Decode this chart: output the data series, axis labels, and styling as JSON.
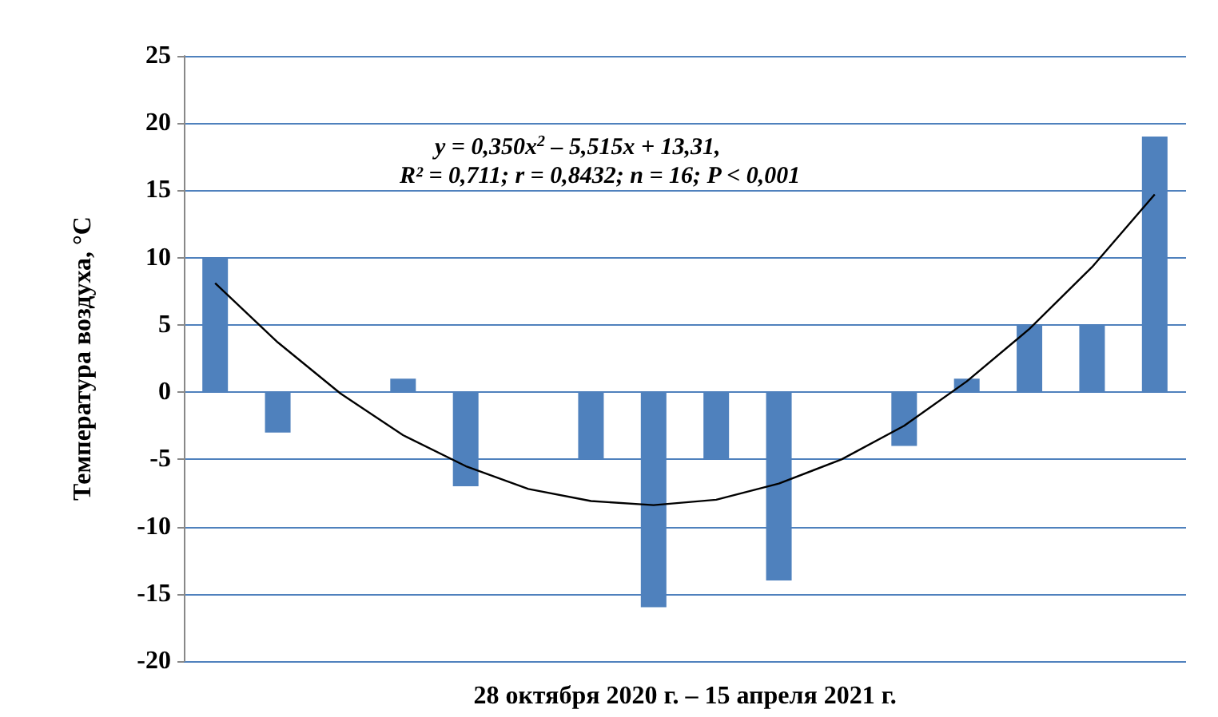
{
  "chart_data": {
    "type": "bar",
    "ylabel": "Температура воздуха, °C",
    "xlabel": "28 октября 2020 г. – 15 апреля 2021 г.",
    "annotations": [
      "y = 0,350x$^{2}$ – 5,515x + 13,31,",
      "R² = 0,711; r = 0,8432; n = 16; P < 0,001"
    ],
    "categories": [
      null,
      null,
      null,
      null,
      null,
      null,
      null,
      null,
      null,
      null,
      null,
      null,
      null,
      null,
      null,
      null
    ],
    "series": [
      {
        "color": "#4f81bd",
        "values": [
          10,
          -3,
          0,
          1,
          -7,
          0,
          -5,
          -16,
          -5,
          -14,
          0,
          -4,
          1,
          5,
          5,
          19
        ]
      },
      {
        "type": "line",
        "color": "#000000",
        "marker": "none",
        "values": [
          8.1,
          3.7,
          -0.1,
          -3.2,
          -5.5,
          -7.2,
          -8.1,
          -8.4,
          -8.0,
          -6.8,
          -5.0,
          -2.5,
          0.8,
          4.7,
          9.3,
          14.7
        ]
      }
    ],
    "ylim": [
      -20,
      25
    ],
    "yticks": [
      -20,
      -15,
      -10,
      -5,
      0,
      5,
      10,
      15,
      20,
      25
    ],
    "grid": "y"
  }
}
